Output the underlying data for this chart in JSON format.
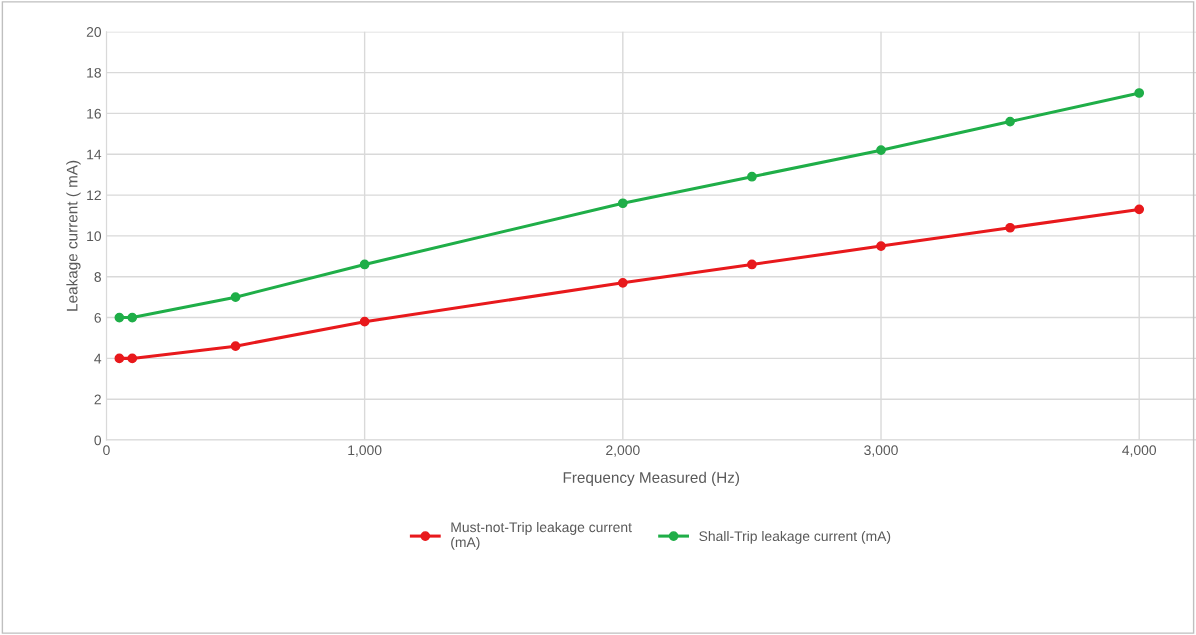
{
  "chart_data": {
    "type": "line",
    "xlabel": "Frequency Measured (Hz)",
    "ylabel": "Leakage current ( mA)",
    "x": [
      50,
      100,
      500,
      1000,
      2000,
      2500,
      3000,
      3500,
      4000
    ],
    "series": [
      {
        "name": "Must-not-Trip leakage current\n(mA)",
        "color": "#e8191c",
        "values": [
          4.0,
          4.0,
          4.6,
          5.8,
          7.7,
          8.6,
          9.5,
          10.4,
          11.3
        ]
      },
      {
        "name": "Shall-Trip leakage current (mA)",
        "color": "#1fae48",
        "values": [
          6.0,
          6.0,
          7.0,
          8.6,
          11.6,
          12.9,
          14.2,
          15.6,
          17.0
        ]
      }
    ],
    "xlim": [
      0,
      4220
    ],
    "xticks": [
      0,
      {
        "value": 1000,
        "label": "1,000"
      },
      {
        "value": 2000,
        "label": "2,000"
      },
      {
        "value": 3000,
        "label": "3,000"
      },
      {
        "value": 4000,
        "label": "4,000"
      }
    ],
    "ylim": [
      0,
      20
    ],
    "yticks": [
      0,
      2,
      4,
      6,
      8,
      10,
      12,
      14,
      16,
      18,
      20
    ],
    "grid": true,
    "legend": "bottom",
    "marker": "circle",
    "line_style": "solid"
  }
}
